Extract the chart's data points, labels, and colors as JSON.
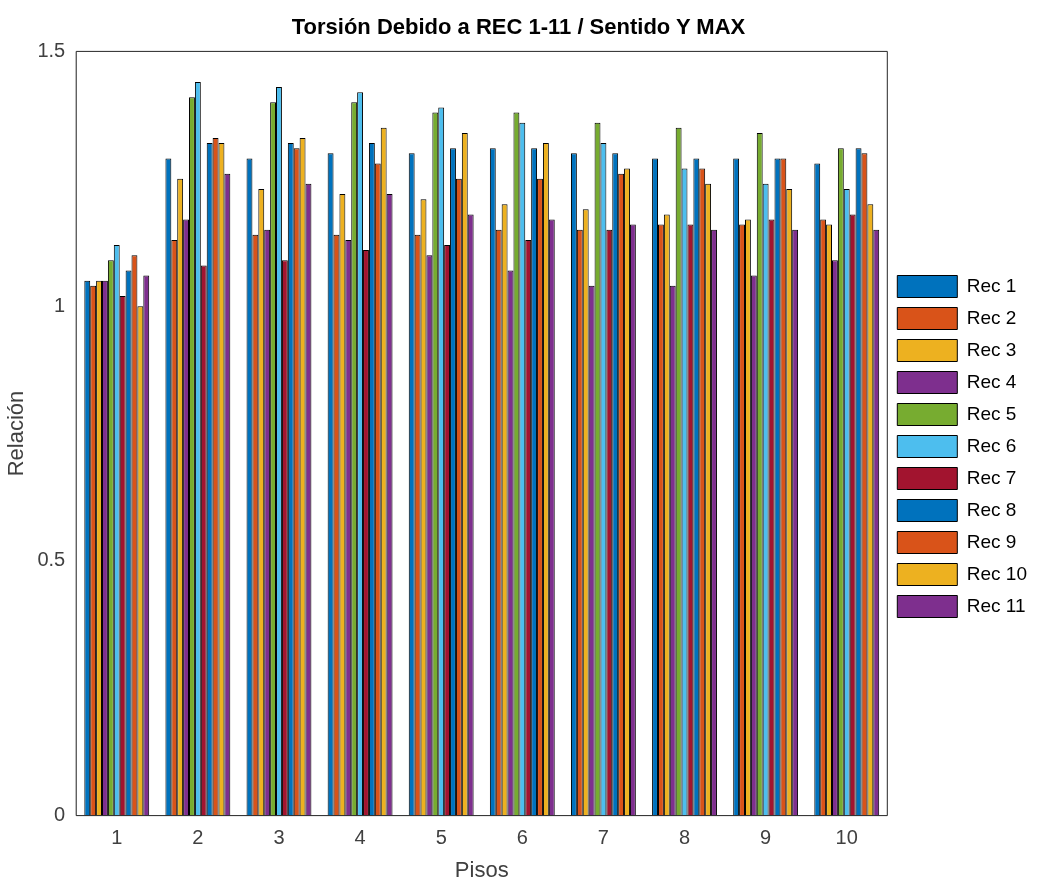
{
  "chart_data": {
    "type": "bar",
    "title": "Torsión Debido a REC 1-11 / Sentido Y MAX",
    "xlabel": "Pisos",
    "ylabel": "Relación",
    "categories": [
      "1",
      "2",
      "3",
      "4",
      "5",
      "6",
      "7",
      "8",
      "9",
      "10"
    ],
    "ylim": [
      0,
      1.5
    ],
    "yticks": [
      0,
      0.5,
      1,
      1.5
    ],
    "grid": false,
    "legend": "right",
    "series": [
      {
        "name": "Rec 1",
        "color": "#0072bd",
        "values": [
          1.05,
          1.29,
          1.29,
          1.3,
          1.3,
          1.31,
          1.3,
          1.29,
          1.29,
          1.28
        ]
      },
      {
        "name": "Rec 2",
        "color": "#d95319",
        "values": [
          1.04,
          1.13,
          1.14,
          1.14,
          1.14,
          1.15,
          1.15,
          1.16,
          1.16,
          1.17
        ]
      },
      {
        "name": "Rec 3",
        "color": "#edb120",
        "values": [
          1.05,
          1.25,
          1.23,
          1.22,
          1.21,
          1.2,
          1.19,
          1.18,
          1.17,
          1.16
        ]
      },
      {
        "name": "Rec 4",
        "color": "#7e2f8e",
        "values": [
          1.05,
          1.17,
          1.15,
          1.13,
          1.1,
          1.07,
          1.04,
          1.04,
          1.06,
          1.09
        ]
      },
      {
        "name": "Rec 5",
        "color": "#77ac30",
        "values": [
          1.09,
          1.41,
          1.4,
          1.4,
          1.38,
          1.38,
          1.36,
          1.35,
          1.34,
          1.31
        ]
      },
      {
        "name": "Rec 6",
        "color": "#4dbeee",
        "values": [
          1.12,
          1.44,
          1.43,
          1.42,
          1.39,
          1.36,
          1.32,
          1.27,
          1.24,
          1.23
        ]
      },
      {
        "name": "Rec 7",
        "color": "#a2142f",
        "values": [
          1.02,
          1.08,
          1.09,
          1.11,
          1.12,
          1.13,
          1.15,
          1.16,
          1.17,
          1.18
        ]
      },
      {
        "name": "Rec 8",
        "color": "#0072bd",
        "values": [
          1.07,
          1.32,
          1.32,
          1.32,
          1.31,
          1.31,
          1.3,
          1.29,
          1.29,
          1.31
        ]
      },
      {
        "name": "Rec 9",
        "color": "#d95319",
        "values": [
          1.1,
          1.33,
          1.31,
          1.28,
          1.25,
          1.25,
          1.26,
          1.27,
          1.29,
          1.3
        ]
      },
      {
        "name": "Rec 10",
        "color": "#edb120",
        "values": [
          1.0,
          1.32,
          1.33,
          1.35,
          1.34,
          1.32,
          1.27,
          1.24,
          1.23,
          1.2
        ]
      },
      {
        "name": "Rec 11",
        "color": "#7e2f8e",
        "values": [
          1.06,
          1.26,
          1.24,
          1.22,
          1.18,
          1.17,
          1.16,
          1.15,
          1.15,
          1.15
        ]
      }
    ]
  }
}
